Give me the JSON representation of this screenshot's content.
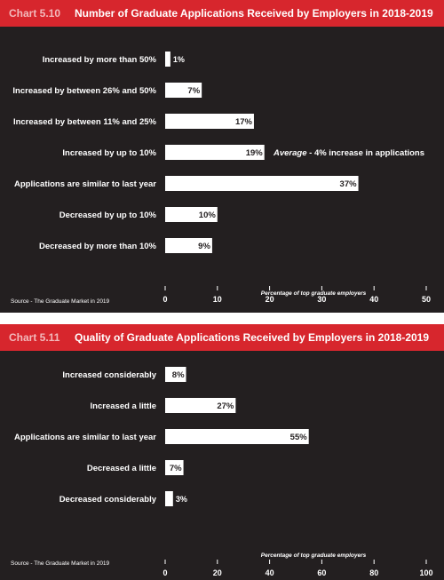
{
  "chart_data": [
    {
      "type": "bar",
      "orientation": "horizontal",
      "chart_number": "Chart 5.10",
      "title": "Number of Graduate Applications Received by Employers in 2018-2019",
      "categories": [
        "Increased by more than 50%",
        "Increased by between 26% and 50%",
        "Increased by between 11% and 25%",
        "Increased by up to 10%",
        "Applications are similar to last year",
        "Decreased by up to 10%",
        "Decreased by more than 10%"
      ],
      "values": [
        1,
        7,
        17,
        19,
        37,
        10,
        9
      ],
      "value_labels": [
        "1%",
        "7%",
        "17%",
        "19%",
        "37%",
        "10%",
        "9%"
      ],
      "xlim": [
        0,
        50
      ],
      "xticks": [
        0,
        10,
        20,
        30,
        40,
        50
      ],
      "xlabel": "Percentage of top graduate employers",
      "annotation": {
        "lead": "Average",
        "text": " - 4% increase in applications"
      },
      "source": "Source - The Graduate Market in 2019"
    },
    {
      "type": "bar",
      "orientation": "horizontal",
      "chart_number": "Chart 5.11",
      "title": "Quality of Graduate Applications Received by Employers in 2018-2019",
      "categories": [
        "Increased considerably",
        "Increased a little",
        "Applications are similar to last year",
        "Decreased a little",
        "Decreased considerably"
      ],
      "values": [
        8,
        27,
        55,
        7,
        3
      ],
      "value_labels": [
        "8%",
        "27%",
        "55%",
        "7%",
        "3%"
      ],
      "xlim": [
        0,
        100
      ],
      "xticks": [
        0,
        20,
        40,
        60,
        80,
        100
      ],
      "xlabel": "Percentage of top graduate employers",
      "source": "Source - The Graduate Market in 2019"
    }
  ],
  "colors": {
    "background": "#231f20",
    "header": "#d7262d",
    "bar": "#ffffff",
    "text": "#ffffff"
  }
}
